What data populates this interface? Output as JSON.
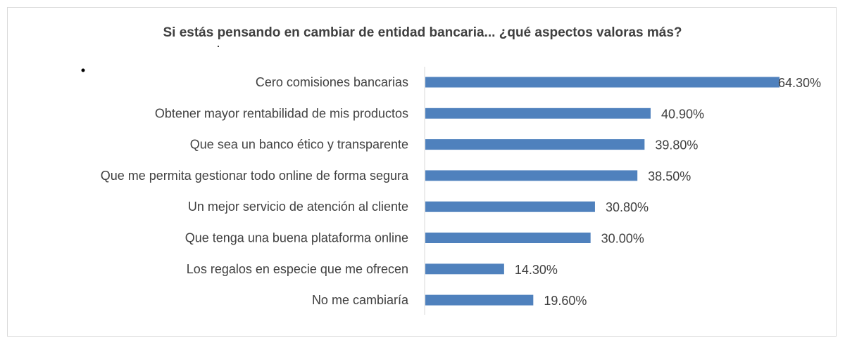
{
  "chart_data": {
    "type": "bar",
    "orientation": "horizontal",
    "title": "Si estás pensando en cambiar de entidad bancaria... ¿qué aspectos valoras más?",
    "categories": [
      "Cero comisiones bancarias",
      "Obtener mayor rentabilidad de mis productos",
      "Que sea un banco ético y transparente",
      "Que me permita gestionar todo online de forma segura",
      "Un mejor servicio de atención al cliente",
      "Que tenga una buena plataforma online",
      "Los regalos en especie que me ofrecen",
      "No me cambiaría"
    ],
    "values": [
      64.3,
      40.9,
      39.8,
      38.5,
      30.8,
      30.0,
      14.3,
      19.6
    ],
    "value_labels": [
      "64.30%",
      "40.90%",
      "39.80%",
      "38.50%",
      "30.80%",
      "30.00%",
      "14.30%",
      "19.60%"
    ],
    "xlim": [
      0,
      64.3
    ],
    "bar_color": "#4f81bd",
    "grid": false,
    "legend": "none"
  }
}
